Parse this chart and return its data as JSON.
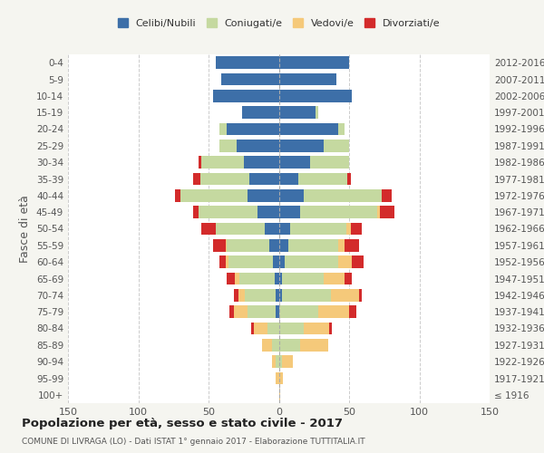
{
  "age_groups": [
    "100+",
    "95-99",
    "90-94",
    "85-89",
    "80-84",
    "75-79",
    "70-74",
    "65-69",
    "60-64",
    "55-59",
    "50-54",
    "45-49",
    "40-44",
    "35-39",
    "30-34",
    "25-29",
    "20-24",
    "15-19",
    "10-14",
    "5-9",
    "0-4"
  ],
  "birth_years": [
    "≤ 1916",
    "1917-1921",
    "1922-1926",
    "1927-1931",
    "1932-1936",
    "1937-1941",
    "1942-1946",
    "1947-1951",
    "1952-1956",
    "1957-1961",
    "1962-1966",
    "1967-1971",
    "1972-1976",
    "1977-1981",
    "1982-1986",
    "1987-1991",
    "1992-1996",
    "1997-2001",
    "2002-2006",
    "2007-2011",
    "2012-2016"
  ],
  "male": {
    "single": [
      0,
      0,
      0,
      0,
      0,
      2,
      2,
      3,
      4,
      7,
      10,
      15,
      22,
      21,
      25,
      30,
      37,
      26,
      47,
      41,
      45
    ],
    "married": [
      0,
      0,
      2,
      5,
      8,
      20,
      22,
      25,
      32,
      30,
      35,
      42,
      48,
      35,
      30,
      12,
      5,
      0,
      0,
      0,
      0
    ],
    "widowed": [
      0,
      2,
      3,
      7,
      10,
      10,
      5,
      3,
      2,
      1,
      0,
      0,
      0,
      0,
      0,
      0,
      0,
      0,
      0,
      0,
      0
    ],
    "divorced": [
      0,
      0,
      0,
      0,
      2,
      3,
      3,
      6,
      4,
      9,
      10,
      4,
      4,
      5,
      2,
      0,
      0,
      0,
      0,
      0,
      0
    ]
  },
  "female": {
    "single": [
      0,
      0,
      0,
      0,
      0,
      0,
      2,
      2,
      4,
      7,
      8,
      15,
      18,
      14,
      22,
      32,
      42,
      26,
      52,
      41,
      50
    ],
    "married": [
      0,
      0,
      2,
      15,
      18,
      28,
      35,
      30,
      38,
      35,
      40,
      55,
      55,
      35,
      28,
      18,
      5,
      2,
      0,
      0,
      0
    ],
    "widowed": [
      1,
      3,
      8,
      20,
      18,
      22,
      20,
      15,
      10,
      5,
      3,
      2,
      0,
      0,
      0,
      0,
      0,
      0,
      0,
      0,
      0
    ],
    "divorced": [
      0,
      0,
      0,
      0,
      2,
      5,
      2,
      5,
      8,
      10,
      8,
      10,
      7,
      2,
      0,
      0,
      0,
      0,
      0,
      0,
      0
    ]
  },
  "colors": {
    "single": "#3d6fa8",
    "married": "#c5d9a0",
    "widowed": "#f5c97a",
    "divorced": "#d32b2b"
  },
  "xlim": 150,
  "title": "Popolazione per età, sesso e stato civile - 2017",
  "subtitle": "COMUNE DI LIVRAGA (LO) - Dati ISTAT 1° gennaio 2017 - Elaborazione TUTTITALIA.IT",
  "ylabel_left": "Fasce di età",
  "legend_labels": [
    "Celibi/Nubili",
    "Coniugati/e",
    "Vedovi/e",
    "Divorziati/e"
  ],
  "bg_color": "#f5f5f0",
  "plot_bg": "#ffffff"
}
